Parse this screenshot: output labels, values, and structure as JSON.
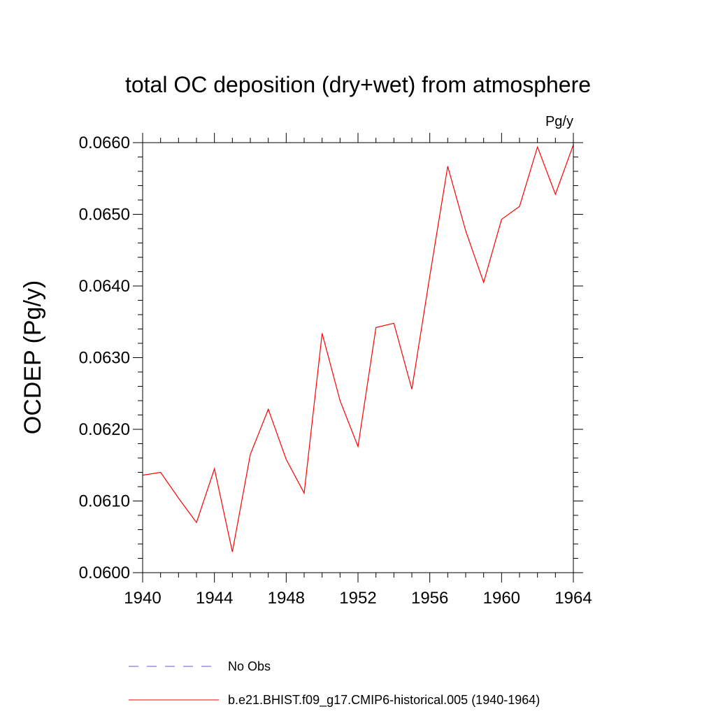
{
  "chart_data": {
    "type": "line",
    "title": "total OC deposition (dry+wet) from atmosphere",
    "units_label": "Pg/y",
    "xlabel": "",
    "ylabel": "OCDEP  (Pg/y)",
    "xlim": [
      1940,
      1964
    ],
    "ylim": [
      0.06,
      0.066
    ],
    "x_ticks": [
      1940,
      1944,
      1948,
      1952,
      1956,
      1960,
      1964
    ],
    "y_ticks": [
      0.06,
      0.061,
      0.062,
      0.063,
      0.064,
      0.065,
      0.066
    ],
    "y_tick_labels": [
      "0.0600",
      "0.0610",
      "0.0620",
      "0.0630",
      "0.0640",
      "0.0650",
      "0.0660"
    ],
    "grid": false,
    "legend_position": "bottom",
    "series": [
      {
        "name": "b.e21.BHIST.f09_g17.CMIP6-historical.005 (1940-1964)",
        "color": "#ff0000",
        "style": "solid",
        "x": [
          1940,
          1941,
          1942,
          1943,
          1944,
          1945,
          1946,
          1947,
          1948,
          1949,
          1950,
          1951,
          1952,
          1953,
          1954,
          1955,
          1956,
          1957,
          1958,
          1959,
          1960,
          1961,
          1962,
          1963,
          1964
        ],
        "values": [
          0.06136,
          0.0614,
          0.06104,
          0.0607,
          0.06145,
          0.06029,
          0.06165,
          0.06228,
          0.06158,
          0.06111,
          0.06334,
          0.0624,
          0.06176,
          0.06342,
          0.06348,
          0.06256,
          0.06414,
          0.06567,
          0.06477,
          0.06405,
          0.06493,
          0.06511,
          0.06594,
          0.06528,
          0.06597
        ]
      }
    ],
    "legend": [
      {
        "name": "No Obs",
        "color": "#6a5acd",
        "style": "dashed"
      },
      {
        "name": "b.e21.BHIST.f09_g17.CMIP6-historical.005 (1940-1964)",
        "color": "#ff0000",
        "style": "solid"
      }
    ]
  }
}
